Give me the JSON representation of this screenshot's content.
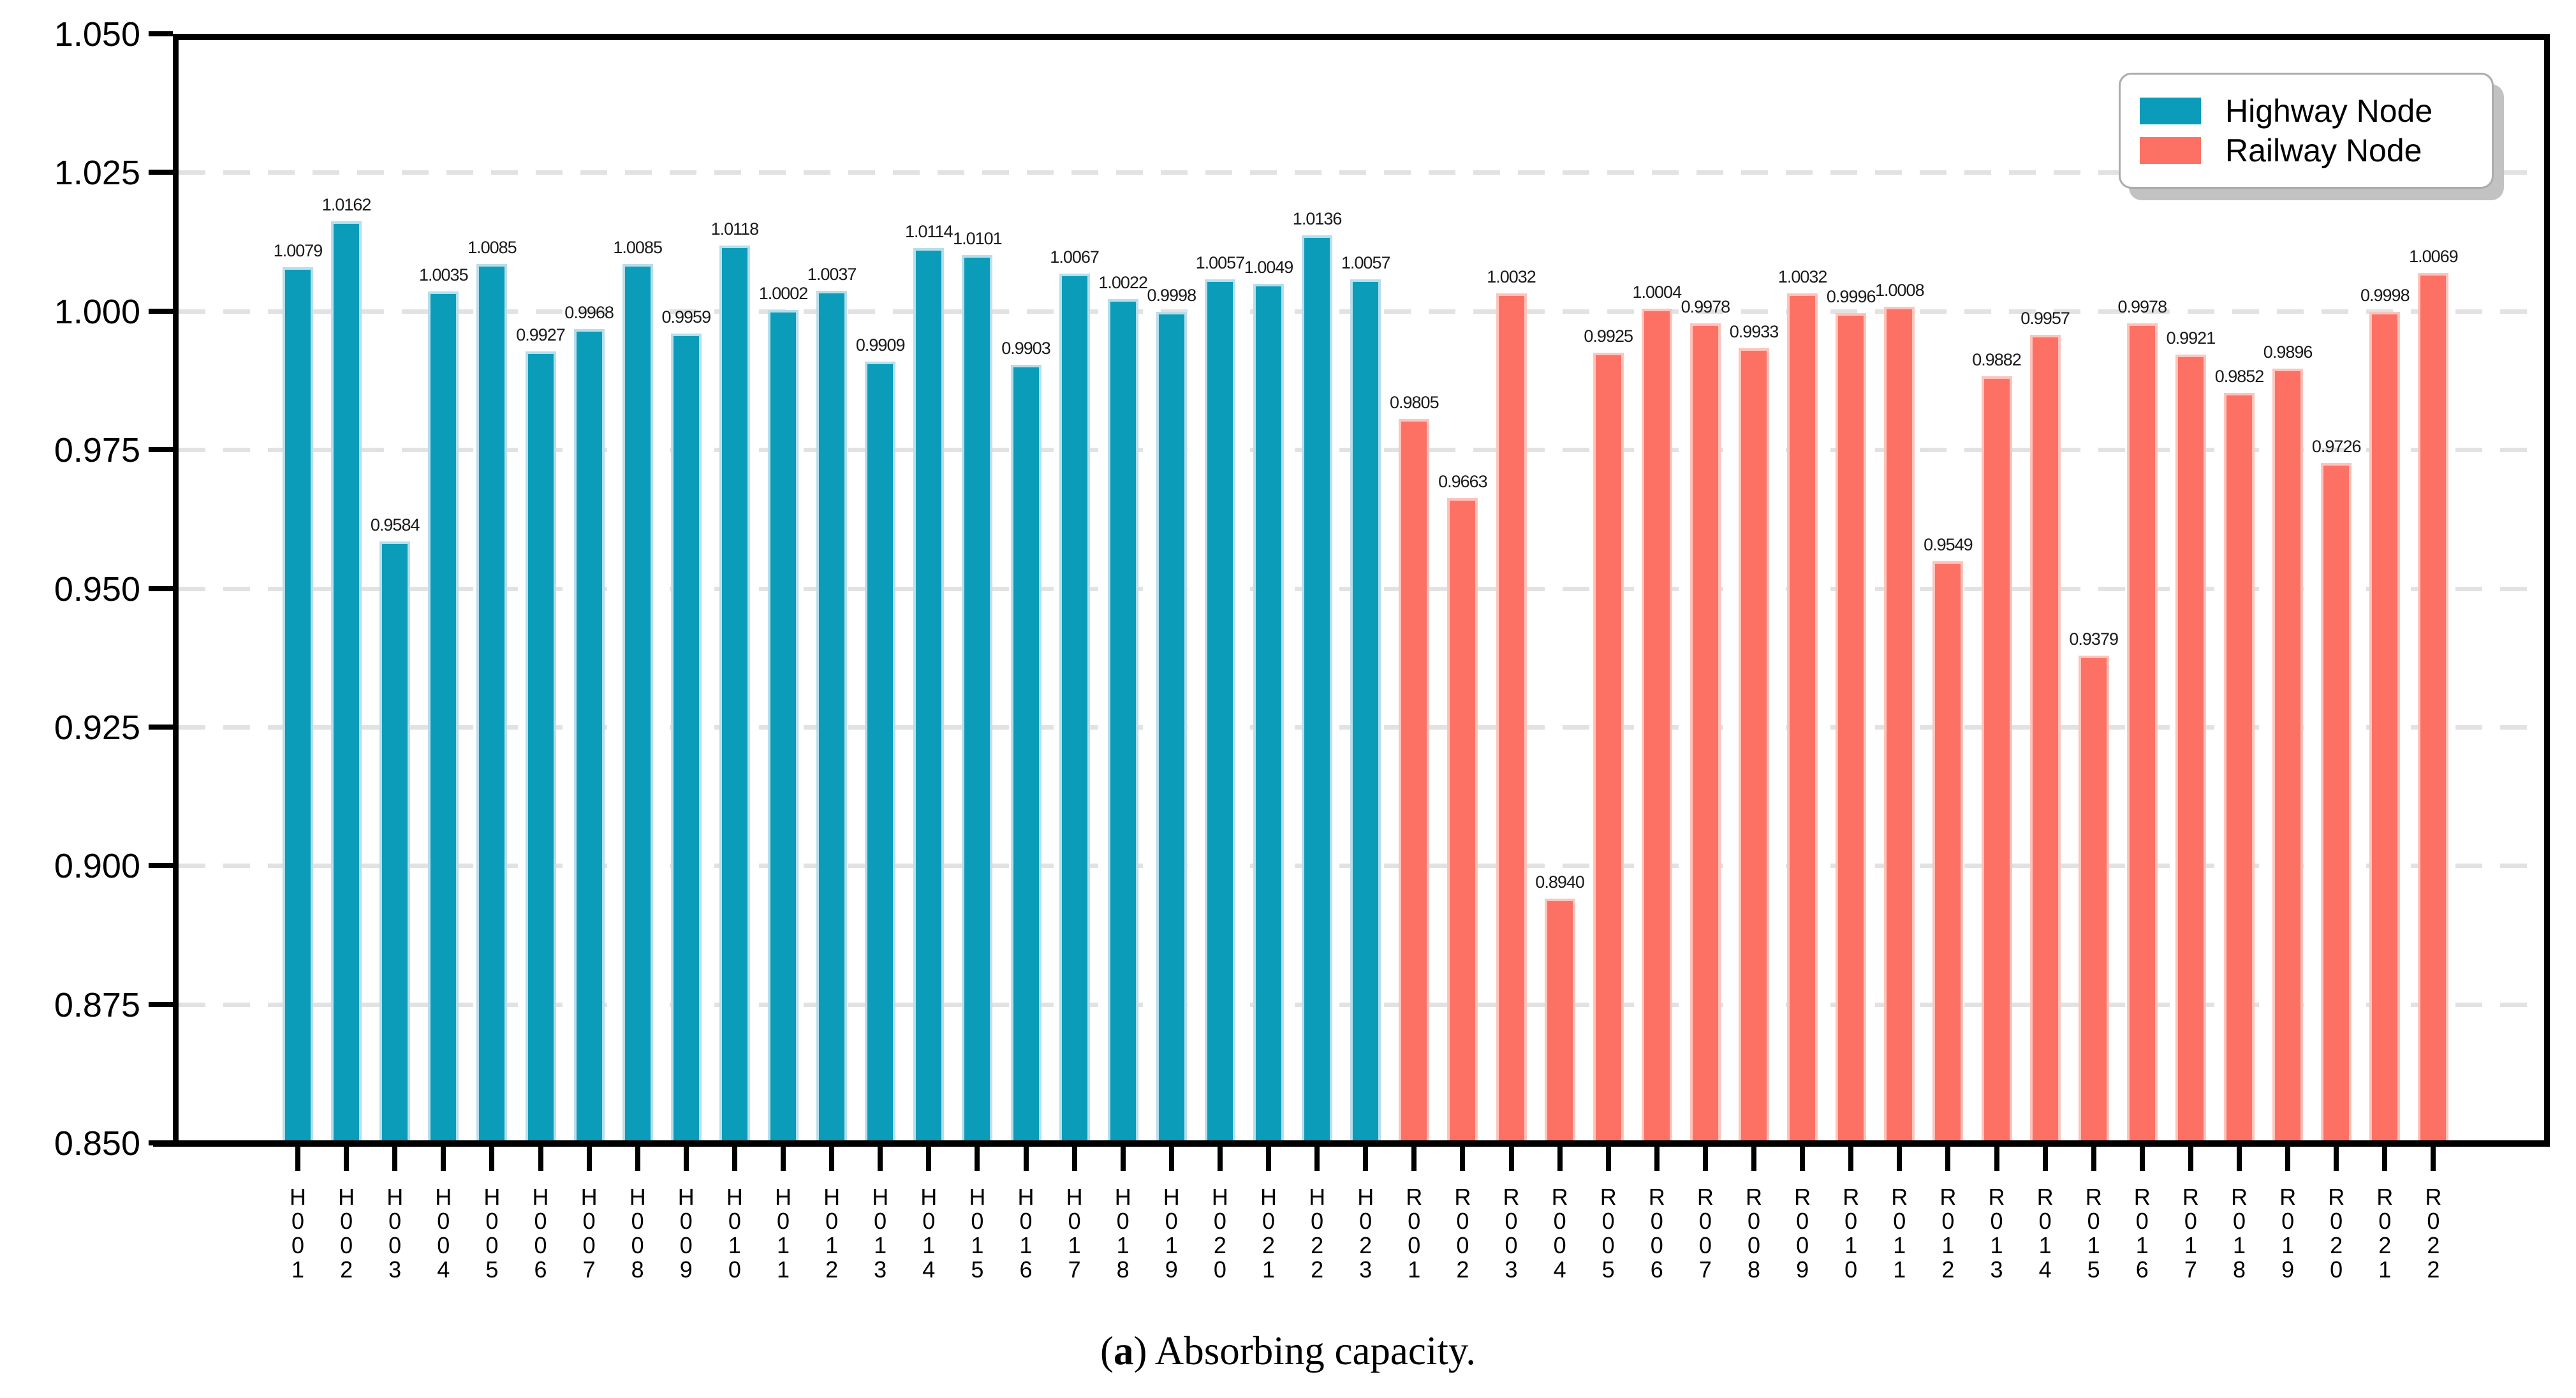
{
  "figure": {
    "background": "#ffffff",
    "caption": {
      "prefix": "(",
      "marker": "a",
      "suffix": ") Absorbing capacity."
    }
  },
  "legend": {
    "position": "upper right",
    "items": [
      {
        "label": "Highway Node",
        "color": "#0a9cb9"
      },
      {
        "label": "Railway Node",
        "color": "#fd7164"
      }
    ]
  },
  "chart_data": {
    "type": "bar",
    "title": "",
    "xlabel": "",
    "ylabel": "",
    "ylim": [
      0.85,
      1.05
    ],
    "grid": "horizontal dashed gridlines at every 0.025 between 0.875 and 1.025",
    "legend_position": "upper right",
    "yticks": [
      {
        "value": 1.05,
        "label": "1.050"
      },
      {
        "value": 1.025,
        "label": "1.025"
      },
      {
        "value": 1.0,
        "label": "1.000"
      },
      {
        "value": 0.975,
        "label": "0.975"
      },
      {
        "value": 0.95,
        "label": "0.950"
      },
      {
        "value": 0.925,
        "label": "0.925"
      },
      {
        "value": 0.9,
        "label": "0.900"
      },
      {
        "value": 0.875,
        "label": "0.875"
      },
      {
        "value": 0.85,
        "label": "0.850"
      }
    ],
    "series": [
      {
        "name": "Highway Node",
        "color": "#0a9cb9",
        "edge_color": "#b7deeb",
        "categories": [
          "H001",
          "H002",
          "H003",
          "H004",
          "H005",
          "H006",
          "H007",
          "H008",
          "H009",
          "H010",
          "H011",
          "H012",
          "H013",
          "H014",
          "H015",
          "H016",
          "H017",
          "H018",
          "H019",
          "H020",
          "H021",
          "H022",
          "H023"
        ],
        "values": [
          1.0079,
          1.0162,
          0.9584,
          1.0035,
          1.0085,
          0.9927,
          0.9968,
          1.0085,
          0.9959,
          1.0118,
          1.0002,
          1.0037,
          0.9909,
          1.0114,
          1.0101,
          0.9903,
          1.0067,
          1.0022,
          0.9998,
          1.0057,
          1.0049,
          1.0136,
          1.0057
        ],
        "value_labels": [
          "1.0079",
          "1.0162",
          "0.9584",
          "1.0035",
          "1.0085",
          "0.9927",
          "0.9968",
          "1.0085",
          "0.9959",
          "1.0118",
          "1.0002",
          "1.0037",
          "0.9909",
          "1.0114",
          "1.0101",
          "0.9903",
          "1.0067",
          "1.0022",
          "0.9998",
          "1.0057",
          "1.0049",
          "1.0136",
          "1.0057"
        ]
      },
      {
        "name": "Railway Node",
        "color": "#fd7164",
        "edge_color": "#fec4bc",
        "categories": [
          "R001",
          "R002",
          "R003",
          "R004",
          "R005",
          "R006",
          "R007",
          "R008",
          "R009",
          "R010",
          "R011",
          "R012",
          "R013",
          "R014",
          "R015",
          "R016",
          "R017",
          "R018",
          "R019",
          "R020",
          "R021",
          "R022"
        ],
        "values": [
          0.9805,
          0.9663,
          1.0032,
          0.894,
          0.9925,
          1.0004,
          0.9978,
          0.9933,
          1.0032,
          0.9996,
          1.0008,
          0.9549,
          0.9882,
          0.9957,
          0.9379,
          0.9978,
          0.9921,
          0.9852,
          0.9896,
          0.9726,
          0.9998,
          1.0069
        ],
        "value_labels": [
          "0.9805",
          "0.9663",
          "1.0032",
          "0.8940",
          "0.9925",
          "1.0004",
          "0.9978",
          "0.9933",
          "1.0032",
          "0.9996",
          "1.0008",
          "0.9549",
          "0.9882",
          "0.9957",
          "0.9379",
          "0.9978",
          "0.9921",
          "0.9852",
          "0.9896",
          "0.9726",
          "0.9998",
          "1.0069"
        ]
      }
    ]
  }
}
